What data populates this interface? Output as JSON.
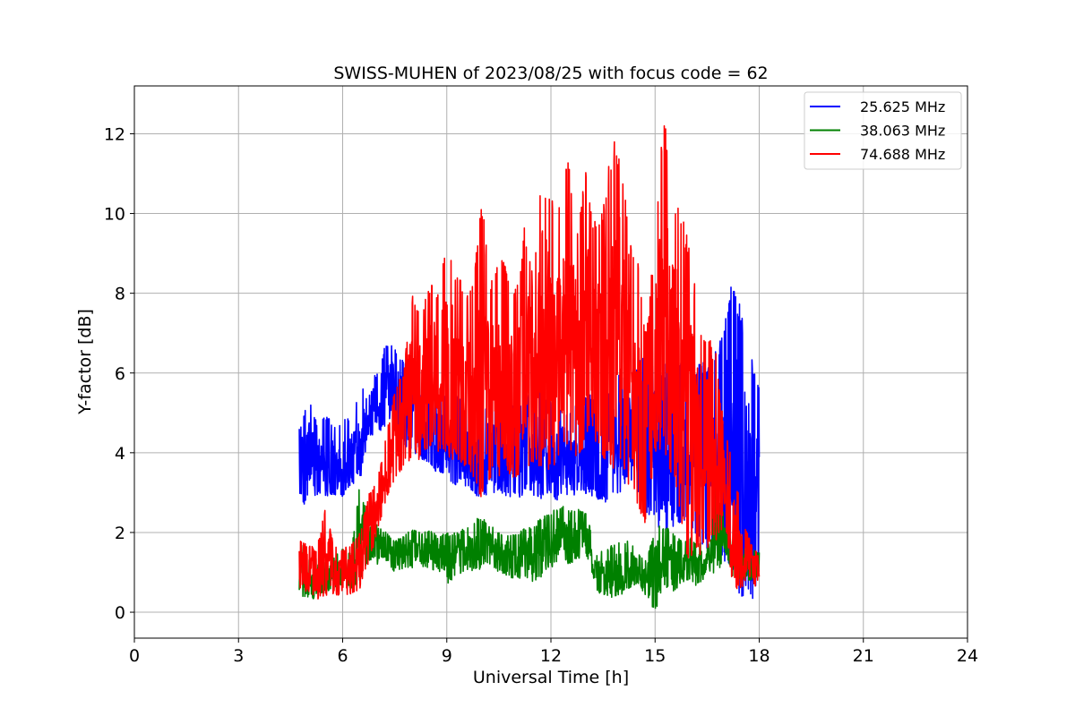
{
  "chart_data": {
    "type": "line",
    "title": "SWISS-MUHEN of 2023/08/25 with focus code = 62",
    "xlabel": "Universal Time [h]",
    "ylabel": "Y-factor [dB]",
    "xlim": [
      0,
      24
    ],
    "ylim": [
      -0.65,
      13.2
    ],
    "xticks": [
      0,
      3,
      6,
      9,
      12,
      15,
      18,
      21,
      24
    ],
    "yticks": [
      0,
      2,
      4,
      6,
      8,
      10,
      12
    ],
    "grid": true,
    "legend_position": "top-right",
    "series": [
      {
        "name": "25.625 MHz",
        "color": "#0000ff",
        "x": [
          4.75,
          5.0,
          5.25,
          5.5,
          5.75,
          6.0,
          6.25,
          6.5,
          6.75,
          7.0,
          7.25,
          7.5,
          7.75,
          8.0,
          8.25,
          8.5,
          8.75,
          9.0,
          9.25,
          9.5,
          9.75,
          10.0,
          10.25,
          10.5,
          10.75,
          11.0,
          11.25,
          11.5,
          11.75,
          12.0,
          12.25,
          12.5,
          12.75,
          13.0,
          13.25,
          13.5,
          13.75,
          14.0,
          14.25,
          14.5,
          14.75,
          15.0,
          15.25,
          15.5,
          15.75,
          16.0,
          16.25,
          16.5,
          16.75,
          17.0,
          17.25,
          17.5,
          17.75,
          18.0
        ],
        "min": [
          2.6,
          2.8,
          2.8,
          2.9,
          2.9,
          2.9,
          3.1,
          3.3,
          4.4,
          4.5,
          4.6,
          4.5,
          4.2,
          4.0,
          3.8,
          3.6,
          3.5,
          3.3,
          3.2,
          3.2,
          3.0,
          2.8,
          3.0,
          3.0,
          2.9,
          2.8,
          3.0,
          2.8,
          2.8,
          2.8,
          2.8,
          2.9,
          2.9,
          2.9,
          2.9,
          2.7,
          2.8,
          3.0,
          3.4,
          3.0,
          2.5,
          2.3,
          1.8,
          2.0,
          2.2,
          2.0,
          1.8,
          1.5,
          1.5,
          1.3,
          0.6,
          0.4,
          0.0,
          1.0
        ],
        "max": [
          4.6,
          5.5,
          4.8,
          5.0,
          4.7,
          4.8,
          5.0,
          5.6,
          5.8,
          6.0,
          6.8,
          6.7,
          6.3,
          6.1,
          5.9,
          5.7,
          5.5,
          5.4,
          5.5,
          5.3,
          5.2,
          5.1,
          5.3,
          5.5,
          5.2,
          5.2,
          5.3,
          5.7,
          5.5,
          5.3,
          5.2,
          5.1,
          5.3,
          5.5,
          5.4,
          5.6,
          5.7,
          6.0,
          6.1,
          6.3,
          6.6,
          6.4,
          6.2,
          6.4,
          6.5,
          6.2,
          6.3,
          6.3,
          6.6,
          7.3,
          8.6,
          7.5,
          6.5,
          5.9
        ]
      },
      {
        "name": "38.063 MHz",
        "color": "#008000",
        "x": [
          4.75,
          5.0,
          5.25,
          5.5,
          5.75,
          6.0,
          6.25,
          6.5,
          6.75,
          7.0,
          7.25,
          7.5,
          7.75,
          8.0,
          8.25,
          8.5,
          8.75,
          9.0,
          9.25,
          9.5,
          9.75,
          10.0,
          10.25,
          10.5,
          10.75,
          11.0,
          11.25,
          11.5,
          11.75,
          12.0,
          12.25,
          12.5,
          12.75,
          13.0,
          13.25,
          13.5,
          13.75,
          14.0,
          14.25,
          14.5,
          14.75,
          15.0,
          15.25,
          15.5,
          15.75,
          16.0,
          16.25,
          16.5,
          16.75,
          17.0,
          17.25,
          17.5,
          17.75,
          18.0
        ],
        "min": [
          0.5,
          0.2,
          0.4,
          0.5,
          0.6,
          0.7,
          0.6,
          0.8,
          1.3,
          1.2,
          1.3,
          1.0,
          1.1,
          1.1,
          1.2,
          1.0,
          1.1,
          0.6,
          0.9,
          1.0,
          1.0,
          1.1,
          1.2,
          1.0,
          0.9,
          0.8,
          0.9,
          0.7,
          0.9,
          1.1,
          1.3,
          1.2,
          1.3,
          1.5,
          0.6,
          0.4,
          0.3,
          0.4,
          0.6,
          0.7,
          0.4,
          0.0,
          0.6,
          0.5,
          0.7,
          0.8,
          0.6,
          0.9,
          1.0,
          1.2,
          0.8,
          0.8,
          0.8,
          0.9
        ],
        "max": [
          1.9,
          1.3,
          1.4,
          1.3,
          1.4,
          1.6,
          1.5,
          3.3,
          2.2,
          2.2,
          2.0,
          1.8,
          1.9,
          2.1,
          2.0,
          2.1,
          1.9,
          2.0,
          2.0,
          2.1,
          2.3,
          2.4,
          2.2,
          2.0,
          2.0,
          2.0,
          2.1,
          2.2,
          2.4,
          2.5,
          2.7,
          2.6,
          2.6,
          2.5,
          1.8,
          1.5,
          1.7,
          1.8,
          1.8,
          1.5,
          1.3,
          2.2,
          2.2,
          2.0,
          1.8,
          1.9,
          1.7,
          1.9,
          3.2,
          2.4,
          2.0,
          1.9,
          1.6,
          1.5
        ]
      },
      {
        "name": "74.688 MHz",
        "color": "#ff0000",
        "x": [
          4.75,
          5.0,
          5.25,
          5.5,
          5.75,
          6.0,
          6.25,
          6.5,
          6.75,
          7.0,
          7.25,
          7.5,
          7.75,
          8.0,
          8.25,
          8.5,
          8.75,
          9.0,
          9.25,
          9.5,
          9.75,
          10.0,
          10.25,
          10.5,
          10.75,
          11.0,
          11.25,
          11.5,
          11.75,
          12.0,
          12.25,
          12.5,
          12.75,
          13.0,
          13.25,
          13.5,
          13.75,
          14.0,
          14.25,
          14.5,
          14.75,
          15.0,
          15.25,
          15.5,
          15.75,
          16.0,
          16.25,
          16.5,
          16.75,
          17.0,
          17.25,
          17.5,
          17.75,
          18.0
        ],
        "min": [
          0.6,
          0.5,
          0.3,
          0.4,
          0.4,
          0.4,
          0.4,
          0.6,
          1.2,
          2.0,
          2.8,
          3.2,
          3.6,
          3.9,
          3.7,
          4.0,
          4.0,
          3.9,
          3.8,
          3.6,
          3.4,
          2.7,
          3.2,
          3.4,
          3.5,
          3.3,
          3.6,
          3.5,
          3.7,
          3.5,
          4.0,
          4.1,
          3.9,
          4.2,
          4.3,
          3.9,
          3.5,
          3.4,
          3.2,
          2.3,
          2.1,
          3.8,
          4.2,
          3.2,
          2.0,
          1.2,
          1.3,
          1.5,
          1.8,
          2.2,
          0.5,
          0.6,
          0.7,
          0.6
        ],
        "max": [
          1.8,
          1.7,
          1.6,
          2.6,
          1.7,
          1.6,
          1.7,
          2.0,
          3.0,
          3.3,
          4.4,
          5.6,
          6.1,
          8.0,
          7.7,
          8.3,
          8.0,
          9.5,
          8.6,
          8.2,
          8.3,
          10.4,
          8.4,
          9.0,
          8.6,
          8.1,
          9.8,
          8.3,
          11.3,
          10.3,
          10.6,
          11.4,
          9.8,
          11.1,
          9.8,
          10.1,
          11.8,
          11.9,
          9.3,
          8.8,
          7.0,
          9.5,
          12.6,
          10.6,
          10.1,
          9.2,
          7.5,
          7.0,
          6.5,
          4.5,
          4.0,
          2.3,
          1.8,
          1.4
        ]
      }
    ]
  }
}
